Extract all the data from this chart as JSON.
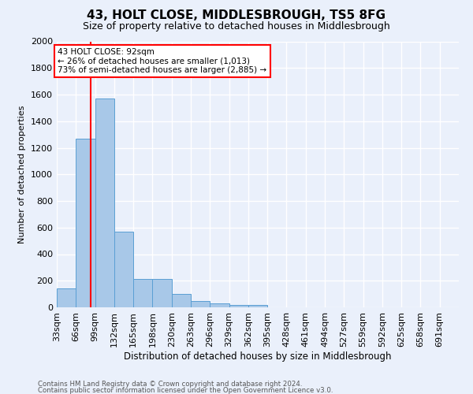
{
  "title": "43, HOLT CLOSE, MIDDLESBROUGH, TS5 8FG",
  "subtitle": "Size of property relative to detached houses in Middlesbrough",
  "xlabel": "Distribution of detached houses by size in Middlesbrough",
  "ylabel": "Number of detached properties",
  "footnote1": "Contains HM Land Registry data © Crown copyright and database right 2024.",
  "footnote2": "Contains public sector information licensed under the Open Government Licence v3.0.",
  "bins": [
    "33sqm",
    "66sqm",
    "99sqm",
    "132sqm",
    "165sqm",
    "198sqm",
    "230sqm",
    "263sqm",
    "296sqm",
    "329sqm",
    "362sqm",
    "395sqm",
    "428sqm",
    "461sqm",
    "494sqm",
    "527sqm",
    "559sqm",
    "592sqm",
    "625sqm",
    "658sqm",
    "691sqm"
  ],
  "values": [
    140,
    1270,
    1570,
    570,
    215,
    215,
    98,
    50,
    28,
    20,
    20,
    0,
    0,
    0,
    0,
    0,
    0,
    0,
    0,
    0,
    0
  ],
  "bar_color": "#a8c8e8",
  "bar_edge_color": "#5a9fd4",
  "bg_color": "#eaf0fb",
  "grid_color": "#ffffff",
  "vline_color": "red",
  "annotation_text": "43 HOLT CLOSE: 92sqm\n← 26% of detached houses are smaller (1,013)\n73% of semi-detached houses are larger (2,885) →",
  "annotation_box_color": "white",
  "annotation_box_edge": "red",
  "ylim": [
    0,
    2000
  ],
  "yticks": [
    0,
    200,
    400,
    600,
    800,
    1000,
    1200,
    1400,
    1600,
    1800,
    2000
  ]
}
